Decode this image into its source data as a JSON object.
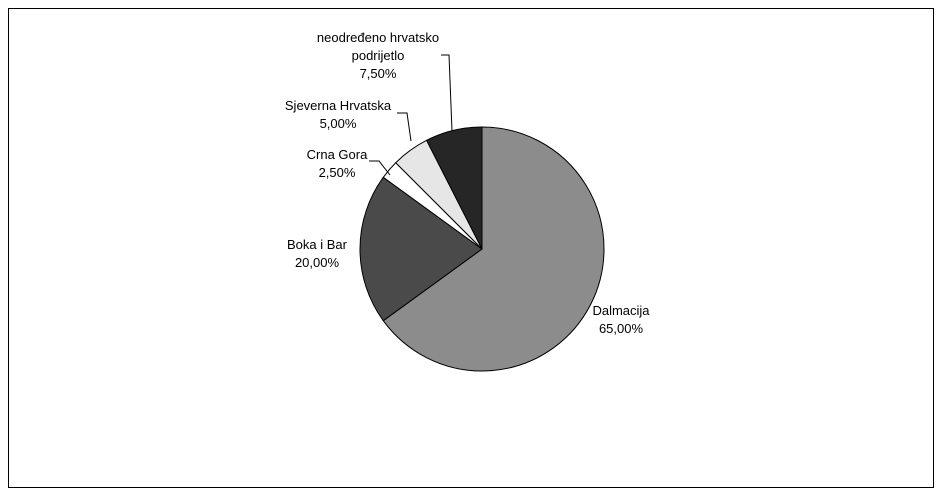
{
  "chart_data": {
    "type": "pie",
    "title": "",
    "slices": [
      {
        "label": "Dalmacija",
        "value": 65.0,
        "display": "65,00%",
        "color": "#8c8c8c"
      },
      {
        "label": "Boka i Bar",
        "value": 20.0,
        "display": "20,00%",
        "color": "#4a4a4a"
      },
      {
        "label": "Crna Gora",
        "value": 2.5,
        "display": "2,50%",
        "color": "#ffffff"
      },
      {
        "label": "Sjeverna Hrvatska",
        "value": 5.0,
        "display": "5,00%",
        "color": "#e6e6e6"
      },
      {
        "label": "neodređeno hrvatsko podrijetlo",
        "value": 7.5,
        "display": "7,50%",
        "color": "#262626"
      }
    ],
    "start_angle_deg": 0,
    "direction": "clockwise",
    "legend": "none",
    "data_labels": "outside"
  }
}
